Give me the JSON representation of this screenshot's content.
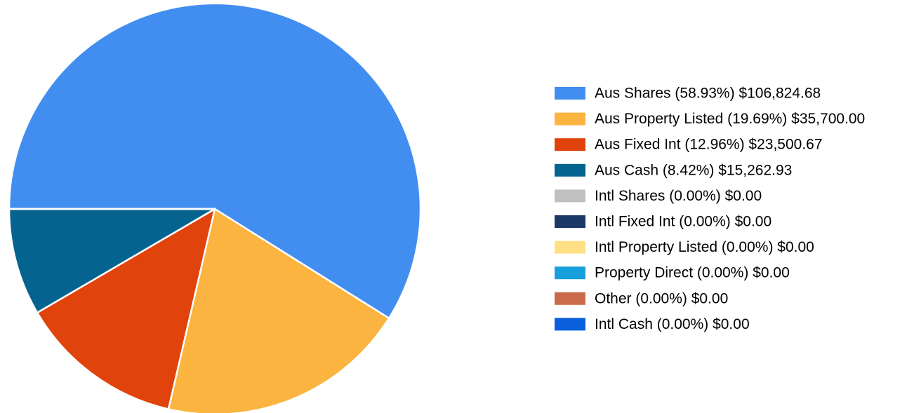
{
  "chart_data": {
    "type": "pie",
    "categories": [
      "Aus Shares (58.93%) $106,824.68",
      "Aus Property Listed (19.69%) $35,700.00",
      "Aus Fixed Int (12.96%) $23,500.67",
      "Aus Cash (8.42%) $15,262.93",
      "Intl Shares (0.00%) $0.00",
      "Intl Fixed Int (0.00%) $0.00",
      "Intl Property Listed (0.00%) $0.00",
      "Property Direct (0.00%) $0.00",
      "Other (0.00%) $0.00",
      "Intl Cash (0.00%) $0.00"
    ],
    "values": [
      106824.68,
      35700.0,
      23500.67,
      15262.93,
      0,
      0,
      0,
      0,
      0,
      0
    ],
    "colors": [
      "#428ef0",
      "#fbb440",
      "#e0430b",
      "#05638f",
      "#c0c0c0",
      "#1b3866",
      "#ffe085",
      "#18a0dc",
      "#c96b4b",
      "#0a5fdc"
    ],
    "legend": "right"
  }
}
